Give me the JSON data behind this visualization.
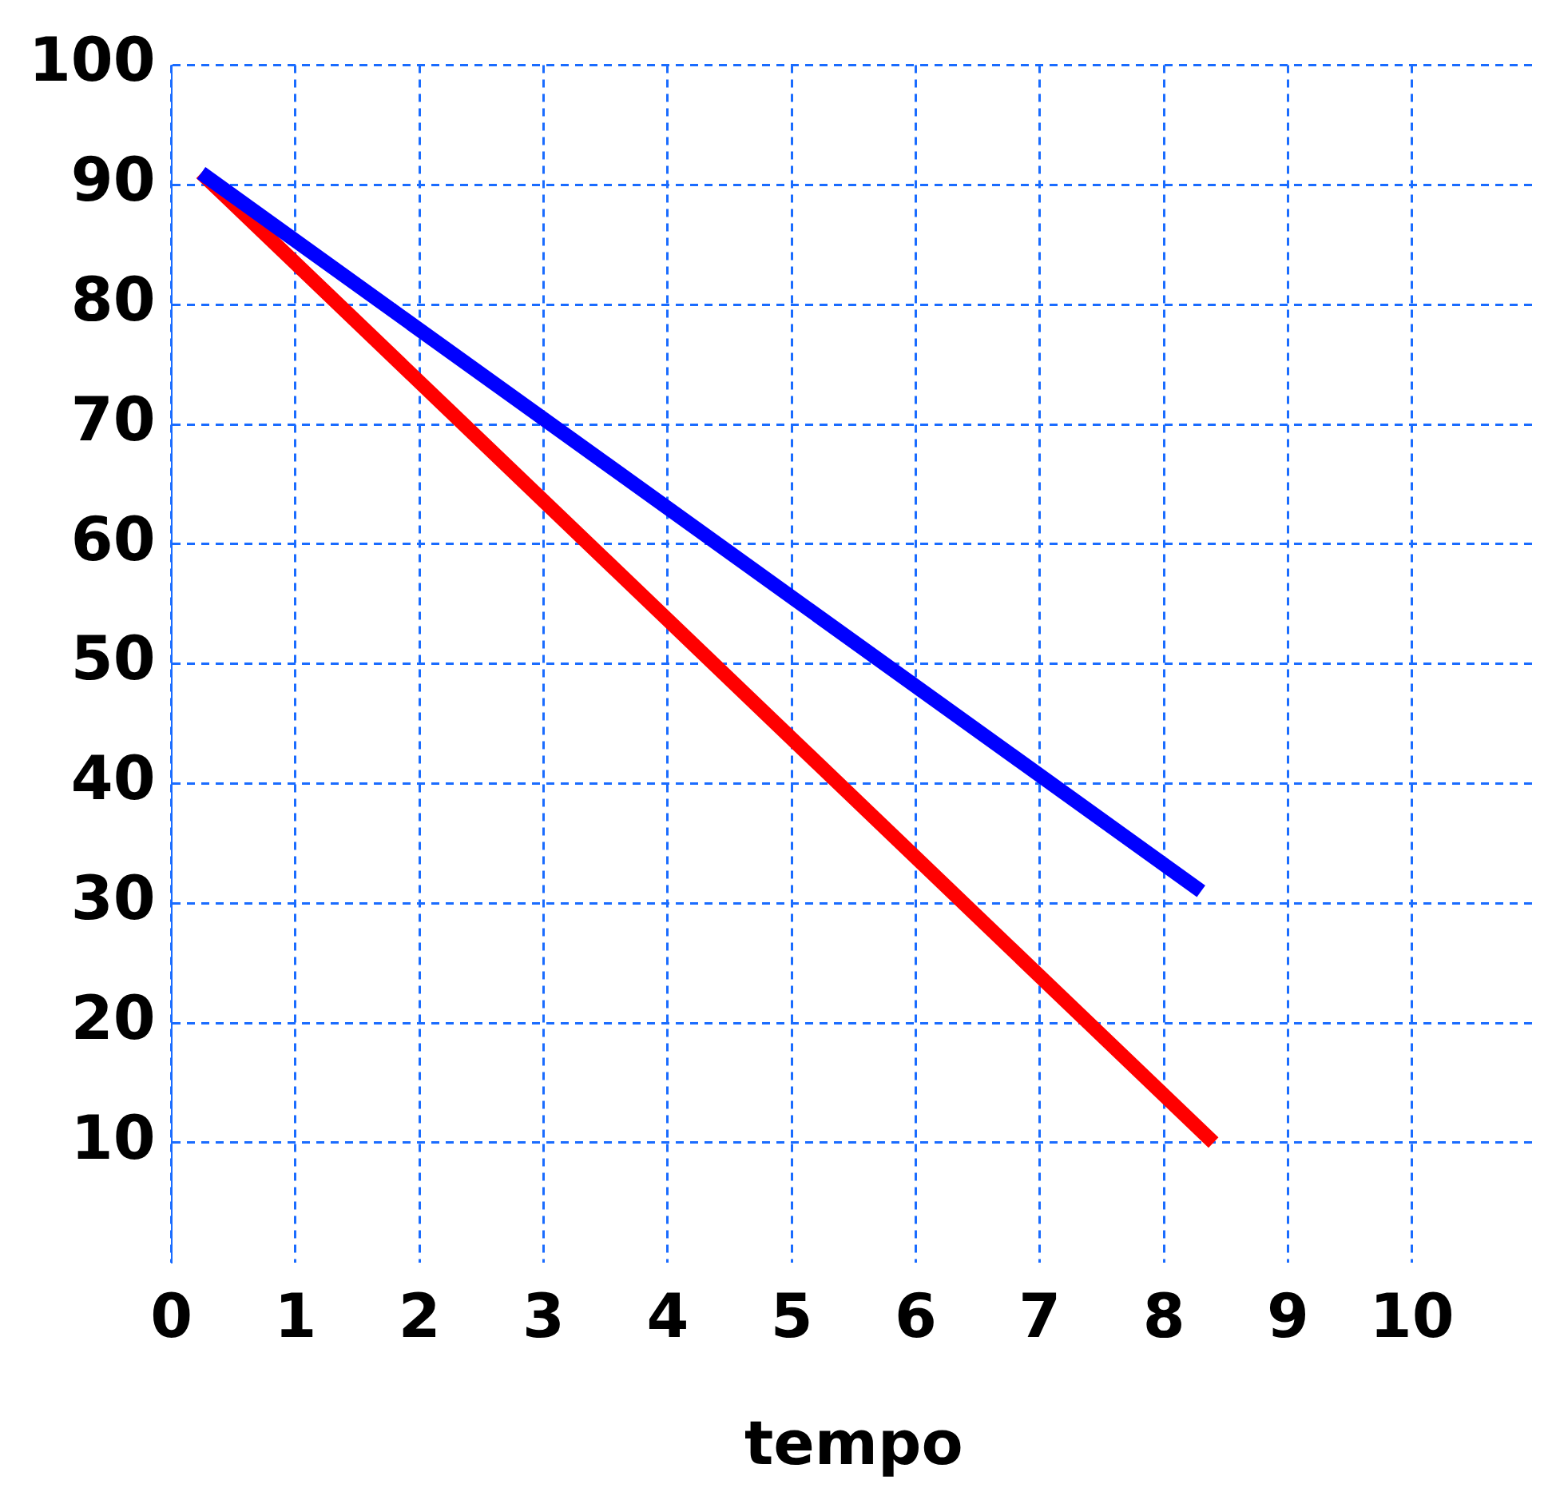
{
  "chart_data": {
    "type": "line",
    "xlabel": "tempo",
    "xlim": [
      0,
      11
    ],
    "xticks": [
      0,
      1,
      2,
      3,
      4,
      5,
      6,
      7,
      8,
      9,
      10
    ],
    "ylim": [
      0,
      100
    ],
    "yticks": [
      10,
      20,
      30,
      40,
      50,
      60,
      70,
      80,
      90,
      100
    ],
    "grid": true,
    "legend": false,
    "marker": "none",
    "line_style": "solid",
    "series": [
      {
        "color": "#0000ff",
        "x": [
          0.24,
          8.3
        ],
        "values": [
          91,
          31
        ]
      },
      {
        "color": "#ff0000",
        "x": [
          0.24,
          8.4
        ],
        "values": [
          91,
          10
        ]
      }
    ]
  }
}
